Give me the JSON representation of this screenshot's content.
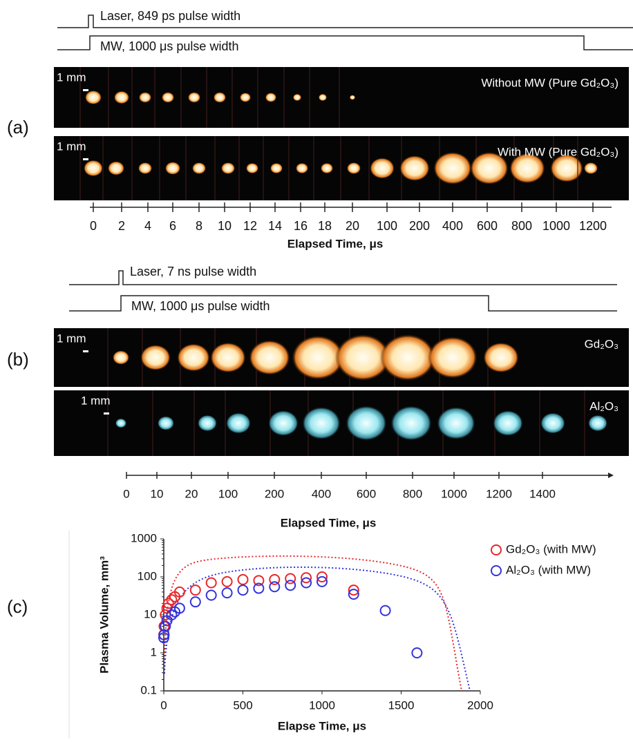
{
  "panel_a": {
    "label": "(a)",
    "laser": "Laser, 849 ps pulse width",
    "mw": "MW, 1000 μs pulse width",
    "rows": [
      {
        "title": "Without MW (Pure Gd₂O₃)",
        "scale": "1 mm"
      },
      {
        "title": "With MW (Pure Gd₂O₃)",
        "scale": "1 mm"
      }
    ],
    "times": [
      0,
      2,
      4,
      6,
      8,
      10,
      12,
      14,
      16,
      18,
      20,
      100,
      200,
      400,
      600,
      800,
      1000,
      1200
    ],
    "axis_label": "Elapsed Time, μs"
  },
  "panel_b": {
    "label": "(b)",
    "laser": "Laser, 7 ns pulse width",
    "mw": "MW, 1000 μs pulse width",
    "rows": [
      {
        "title": "Gd₂O₃",
        "scale": "1 mm"
      },
      {
        "title": "Al₂O₃",
        "scale": "1 mm"
      }
    ],
    "times": [
      0,
      10,
      20,
      100,
      200,
      400,
      600,
      800,
      1000,
      1200,
      1400
    ],
    "axis_label": "Elapsed Time, μs"
  },
  "chart_data": {
    "type": "scatter",
    "panel_label": "(c)",
    "x_label": "Elapse Time, μs",
    "y_label": "Plasma Volume, mm³",
    "xlim": [
      0,
      2000
    ],
    "xticks": [
      0,
      500,
      1000,
      1500,
      2000
    ],
    "ylim": [
      0.1,
      1000
    ],
    "yticks": [
      0.1,
      1,
      10,
      100,
      1000
    ],
    "log_y": true,
    "legend": "upper right",
    "series": [
      {
        "name": "Gd₂O₃ (with MW)",
        "color": "#e8262a",
        "x": [
          0,
          2,
          10,
          20,
          30,
          50,
          70,
          100,
          200,
          300,
          400,
          500,
          600,
          700,
          800,
          900,
          1000,
          1200
        ],
        "values": [
          3,
          5,
          10,
          15,
          20,
          25,
          30,
          40,
          45,
          70,
          75,
          85,
          80,
          85,
          90,
          95,
          100,
          45
        ]
      },
      {
        "name": "Al₂O₃ (with MW)",
        "color": "#3333dd",
        "x": [
          0,
          2,
          10,
          20,
          50,
          70,
          100,
          200,
          300,
          400,
          500,
          600,
          700,
          800,
          900,
          1000,
          1200,
          1400,
          1600
        ],
        "values": [
          2.5,
          3,
          5,
          7,
          10,
          12,
          15,
          22,
          33,
          38,
          45,
          50,
          55,
          60,
          70,
          75,
          35,
          13,
          1
        ]
      }
    ]
  }
}
